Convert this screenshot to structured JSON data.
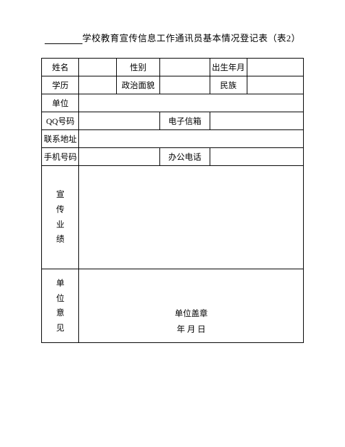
{
  "title": {
    "prefix_blank": "",
    "text": "学校教育宣传信息工作通讯员基本情况登记表（表2）"
  },
  "labels": {
    "name": "姓名",
    "gender": "性别",
    "birth": "出生年月",
    "education": "学历",
    "political": "政治面貌",
    "ethnicity": "民族",
    "unit": "单位",
    "qq": "QQ号码",
    "email": "电子信箱",
    "address": "联系地址",
    "mobile": "手机号码",
    "office_phone": "办公电话",
    "achievements": "宣\n传\n业\n绩",
    "opinion": "单\n位\n意\n见",
    "stamp": "单位盖章",
    "date": "年  月  日"
  },
  "values": {
    "name": "",
    "gender": "",
    "birth": "",
    "education": "",
    "political": "",
    "ethnicity": "",
    "unit": "",
    "qq": "",
    "email": "",
    "address": "",
    "mobile": "",
    "office_phone": "",
    "achievements": "",
    "opinion": ""
  }
}
